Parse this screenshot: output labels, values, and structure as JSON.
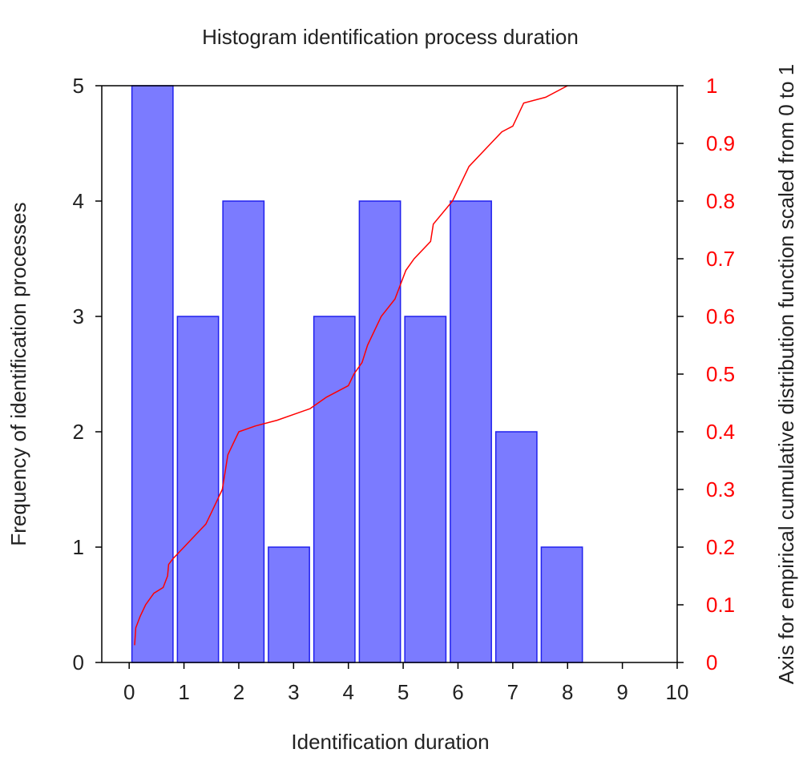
{
  "chart_data": {
    "type": "bar",
    "title": "Histogram identification process duration",
    "xlabel": "Identification duration",
    "ylabel": "Frequency of identification processes",
    "y2label": "Axis for empirical cumulative distribution function scaled from 0 to 1",
    "xlim": [
      -0.5,
      10.0
    ],
    "ylim": [
      0,
      5
    ],
    "y2lim": [
      0,
      1
    ],
    "x_ticks": [
      "0",
      "1",
      "2",
      "3",
      "4",
      "5",
      "6",
      "7",
      "8",
      "9",
      "10"
    ],
    "y_ticks": [
      "0",
      "1",
      "2",
      "3",
      "4",
      "5"
    ],
    "y2_ticks": [
      "0",
      "0.1",
      "0.2",
      "0.3",
      "0.4",
      "0.5",
      "0.6",
      "0.7",
      "0.8",
      "0.9",
      "1"
    ],
    "bars": [
      {
        "x0": 0.05,
        "x1": 0.8,
        "value": 5
      },
      {
        "x0": 0.88,
        "x1": 1.63,
        "value": 3
      },
      {
        "x0": 1.71,
        "x1": 2.46,
        "value": 4
      },
      {
        "x0": 2.54,
        "x1": 3.29,
        "value": 1
      },
      {
        "x0": 3.37,
        "x1": 4.12,
        "value": 3
      },
      {
        "x0": 4.2,
        "x1": 4.95,
        "value": 4
      },
      {
        "x0": 5.03,
        "x1": 5.78,
        "value": 3
      },
      {
        "x0": 5.86,
        "x1": 6.61,
        "value": 4
      },
      {
        "x0": 6.69,
        "x1": 7.44,
        "value": 2
      },
      {
        "x0": 7.52,
        "x1": 8.27,
        "value": 1
      }
    ],
    "ecdf": {
      "x": [
        0.1,
        0.12,
        0.2,
        0.3,
        0.45,
        0.62,
        0.7,
        0.72,
        0.8,
        1.0,
        1.2,
        1.4,
        1.5,
        1.6,
        1.7,
        1.75,
        1.8,
        1.9,
        2.0,
        2.3,
        2.7,
        3.3,
        3.6,
        4.0,
        4.1,
        4.25,
        4.35,
        4.6,
        4.85,
        5.05,
        5.2,
        5.5,
        5.55,
        5.9,
        6.2,
        6.6,
        6.8,
        7.0,
        7.2,
        7.6,
        8.0
      ],
      "y": [
        0.03,
        0.06,
        0.08,
        0.1,
        0.12,
        0.13,
        0.15,
        0.17,
        0.18,
        0.2,
        0.22,
        0.24,
        0.26,
        0.28,
        0.3,
        0.33,
        0.36,
        0.38,
        0.4,
        0.41,
        0.42,
        0.44,
        0.46,
        0.48,
        0.5,
        0.52,
        0.55,
        0.6,
        0.63,
        0.68,
        0.7,
        0.73,
        0.76,
        0.8,
        0.86,
        0.9,
        0.92,
        0.93,
        0.97,
        0.98,
        1.0
      ]
    },
    "colors": {
      "bar_fill": "#7b7bff",
      "bar_stroke": "#2020ee",
      "ecdf_line": "#ff0000",
      "right_axis": "#ff0000",
      "text": "#222222"
    },
    "grid": false,
    "legend": "none"
  }
}
